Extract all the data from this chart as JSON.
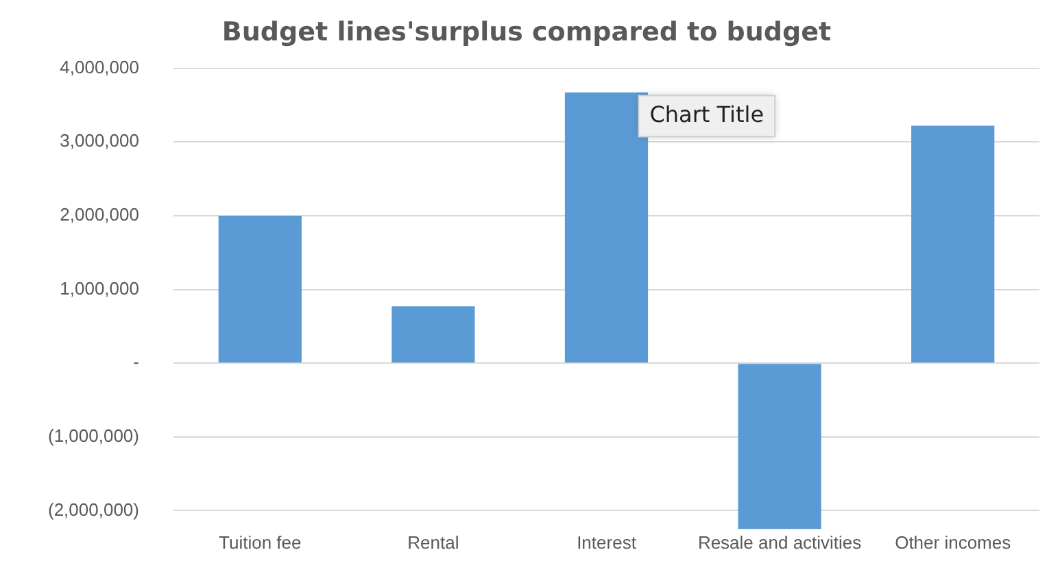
{
  "chart_data": {
    "type": "bar",
    "title": "Budget lines'surplus compared to budget",
    "categories": [
      "Tuition fee",
      "Rental",
      "Interest",
      "Resale and activities",
      "Other incomes"
    ],
    "values": [
      2000000,
      770000,
      3670000,
      -2250000,
      3220000
    ],
    "color": "#5b9bd5",
    "ylim": [
      -2250000,
      4000000
    ],
    "yticks": [
      {
        "value": -2000000,
        "label": "(2,000,000)"
      },
      {
        "value": -1000000,
        "label": "(1,000,000)"
      },
      {
        "value": 0,
        "label": "-"
      },
      {
        "value": 1000000,
        "label": "1,000,000"
      },
      {
        "value": 2000000,
        "label": "2,000,000"
      },
      {
        "value": 3000000,
        "label": "3,000,000"
      },
      {
        "value": 4000000,
        "label": "4,000,000"
      }
    ],
    "grid": "y",
    "annotations": [
      "Chart Title"
    ]
  }
}
